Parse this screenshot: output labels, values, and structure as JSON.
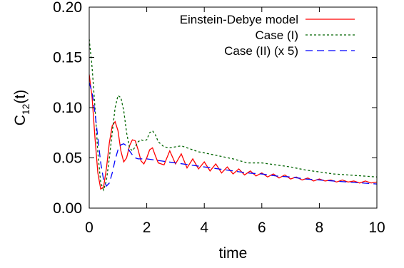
{
  "chart_data": {
    "type": "line",
    "xlabel": "time",
    "ylabel_main": "C",
    "ylabel_sub": "12",
    "ylabel_tail": "(t)",
    "xlim": [
      0,
      10
    ],
    "ylim": [
      0,
      0.2
    ],
    "xticks": [
      0,
      2,
      4,
      6,
      8,
      10
    ],
    "xtick_labels": [
      "0",
      "2",
      "4",
      "6",
      "8",
      "10"
    ],
    "yticks": [
      0,
      0.05,
      0.1,
      0.15,
      0.2
    ],
    "ytick_labels": [
      "0.00",
      "0.05",
      "0.10",
      "0.15",
      "0.20"
    ],
    "legend_position": "top-right",
    "grid": false,
    "series": [
      {
        "name": "Einstein-Debye model",
        "color": "#ff0000",
        "dash": "solid",
        "x": [
          0,
          0.1,
          0.2,
          0.3,
          0.4,
          0.5,
          0.6,
          0.7,
          0.8,
          0.9,
          1.0,
          1.1,
          1.2,
          1.3,
          1.4,
          1.5,
          1.6,
          1.7,
          1.8,
          1.9,
          2.0,
          2.1,
          2.2,
          2.3,
          2.4,
          2.6,
          2.8,
          3.0,
          3.2,
          3.4,
          3.6,
          3.8,
          4.0,
          4.2,
          4.4,
          4.6,
          4.8,
          5.0,
          5.2,
          5.4,
          5.6,
          5.8,
          6.0,
          6.2,
          6.4,
          6.6,
          6.8,
          7.0,
          7.2,
          7.4,
          7.6,
          7.8,
          8.0,
          8.2,
          8.4,
          8.6,
          8.8,
          9.0,
          9.2,
          9.4,
          9.6,
          9.8,
          10.0
        ],
        "y": [
          0.133,
          0.11,
          0.07,
          0.035,
          0.019,
          0.021,
          0.04,
          0.065,
          0.082,
          0.086,
          0.077,
          0.057,
          0.046,
          0.05,
          0.062,
          0.068,
          0.067,
          0.058,
          0.047,
          0.044,
          0.05,
          0.058,
          0.06,
          0.052,
          0.045,
          0.043,
          0.057,
          0.044,
          0.054,
          0.04,
          0.049,
          0.039,
          0.046,
          0.037,
          0.044,
          0.035,
          0.041,
          0.034,
          0.039,
          0.033,
          0.037,
          0.032,
          0.035,
          0.031,
          0.034,
          0.03,
          0.033,
          0.029,
          0.031,
          0.028,
          0.03,
          0.027,
          0.029,
          0.027,
          0.028,
          0.026,
          0.028,
          0.026,
          0.027,
          0.025,
          0.027,
          0.025,
          0.026
        ]
      },
      {
        "name": "Case (I)",
        "color": "#006400",
        "dash": "3,3",
        "x": [
          0,
          0.1,
          0.2,
          0.3,
          0.4,
          0.5,
          0.6,
          0.7,
          0.8,
          0.9,
          1.0,
          1.1,
          1.2,
          1.3,
          1.4,
          1.5,
          1.6,
          1.7,
          1.8,
          1.9,
          2.0,
          2.1,
          2.2,
          2.3,
          2.4,
          2.6,
          2.8,
          3.0,
          3.2,
          3.4,
          3.6,
          3.8,
          4.0,
          4.5,
          5.0,
          5.5,
          6.0,
          6.5,
          7.0,
          7.5,
          8.0,
          8.5,
          9.0,
          9.5,
          10.0
        ],
        "y": [
          0.168,
          0.14,
          0.1,
          0.055,
          0.025,
          0.018,
          0.028,
          0.05,
          0.075,
          0.1,
          0.112,
          0.11,
          0.097,
          0.075,
          0.06,
          0.057,
          0.061,
          0.066,
          0.068,
          0.067,
          0.068,
          0.075,
          0.077,
          0.073,
          0.066,
          0.061,
          0.06,
          0.061,
          0.062,
          0.06,
          0.058,
          0.056,
          0.055,
          0.052,
          0.049,
          0.045,
          0.045,
          0.043,
          0.041,
          0.038,
          0.036,
          0.034,
          0.033,
          0.032,
          0.031
        ]
      },
      {
        "name": "Case (II) (x 5)",
        "color": "#0000ff",
        "dash": "10,6",
        "x": [
          0,
          0.1,
          0.2,
          0.3,
          0.4,
          0.5,
          0.6,
          0.7,
          0.8,
          0.9,
          1.0,
          1.1,
          1.2,
          1.3,
          1.4,
          1.5,
          1.6,
          1.7,
          1.8,
          2.0,
          2.5,
          3.0,
          3.5,
          4.0,
          4.5,
          5.0,
          5.5,
          6.0,
          6.5,
          7.0,
          7.5,
          8.0,
          8.5,
          9.0,
          9.5,
          10.0
        ],
        "y": [
          0.125,
          0.115,
          0.095,
          0.07,
          0.045,
          0.028,
          0.022,
          0.025,
          0.035,
          0.048,
          0.058,
          0.063,
          0.064,
          0.062,
          0.057,
          0.053,
          0.05,
          0.049,
          0.049,
          0.049,
          0.047,
          0.045,
          0.043,
          0.041,
          0.039,
          0.037,
          0.035,
          0.034,
          0.032,
          0.031,
          0.029,
          0.028,
          0.027,
          0.026,
          0.025,
          0.024
        ]
      }
    ]
  }
}
